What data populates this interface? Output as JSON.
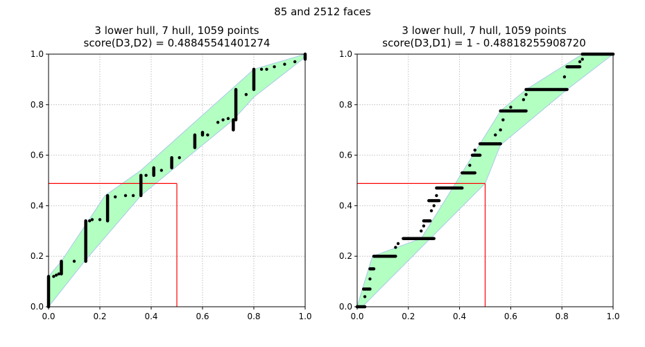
{
  "figure": {
    "suptitle": "85 and 2512 faces"
  },
  "chart_data": [
    {
      "type": "scatter",
      "title": "3 lower hull, 7 hull, 1059 points",
      "subtitle": "score(D3,D2) = 0.48845541401274",
      "xlabel": "",
      "ylabel": "",
      "xlim": [
        0,
        1
      ],
      "ylim": [
        0,
        1
      ],
      "xticks": [
        "0.0",
        "0.2",
        "0.4",
        "0.6",
        "0.8",
        "1.0"
      ],
      "yticks": [
        "0.0",
        "0.2",
        "0.4",
        "0.6",
        "0.8",
        "1.0"
      ],
      "grid": true,
      "hull_color": "#b3ffc2",
      "hull_edge_color": "#a8c8e8",
      "point_color": "#000000",
      "marker_color": "#ff0000",
      "marker": {
        "x": 0.5,
        "y": 0.488
      },
      "hull": [
        [
          0,
          0
        ],
        [
          0,
          0.12
        ],
        [
          0.05,
          0.18
        ],
        [
          0.22,
          0.44
        ],
        [
          0.36,
          0.54
        ],
        [
          0.8,
          0.94
        ],
        [
          1,
          1
        ],
        [
          0.99,
          0.98
        ],
        [
          0.8,
          0.83
        ],
        [
          0.72,
          0.74
        ],
        [
          0.36,
          0.44
        ],
        [
          0.14,
          0.18
        ]
      ],
      "segments": [
        {
          "x": 0.0,
          "y0": 0.0,
          "y1": 0.12
        },
        {
          "x": 0.05,
          "y0": 0.13,
          "y1": 0.18
        },
        {
          "x": 0.145,
          "y0": 0.18,
          "y1": 0.34
        },
        {
          "x": 0.23,
          "y0": 0.34,
          "y1": 0.44
        },
        {
          "x": 0.36,
          "y0": 0.44,
          "y1": 0.52
        },
        {
          "x": 0.41,
          "y0": 0.52,
          "y1": 0.55
        },
        {
          "x": 0.48,
          "y0": 0.55,
          "y1": 0.59
        },
        {
          "x": 0.57,
          "y0": 0.63,
          "y1": 0.68
        },
        {
          "x": 0.6,
          "y0": 0.69,
          "y1": 0.68
        },
        {
          "x": 0.72,
          "y0": 0.7,
          "y1": 0.74
        },
        {
          "x": 0.73,
          "y0": 0.74,
          "y1": 0.86
        },
        {
          "x": 0.8,
          "y0": 0.86,
          "y1": 0.94
        },
        {
          "x": 1.0,
          "y0": 0.98,
          "y1": 1.0
        }
      ],
      "points": [
        [
          0.02,
          0.12
        ],
        [
          0.03,
          0.125
        ],
        [
          0.04,
          0.13
        ],
        [
          0.1,
          0.18
        ],
        [
          0.16,
          0.34
        ],
        [
          0.17,
          0.345
        ],
        [
          0.2,
          0.345
        ],
        [
          0.26,
          0.435
        ],
        [
          0.3,
          0.44
        ],
        [
          0.33,
          0.44
        ],
        [
          0.38,
          0.52
        ],
        [
          0.44,
          0.54
        ],
        [
          0.51,
          0.59
        ],
        [
          0.6,
          0.69
        ],
        [
          0.66,
          0.73
        ],
        [
          0.68,
          0.74
        ],
        [
          0.7,
          0.745
        ],
        [
          0.83,
          0.94
        ],
        [
          0.85,
          0.94
        ],
        [
          0.88,
          0.95
        ],
        [
          0.92,
          0.96
        ],
        [
          0.96,
          0.97
        ],
        [
          0.62,
          0.68
        ],
        [
          0.77,
          0.84
        ]
      ]
    },
    {
      "type": "scatter",
      "title": "3 lower hull, 7 hull, 1059 points",
      "subtitle": "score(D3,D1) = 1 - 0.48818255908720",
      "xlabel": "",
      "ylabel": "",
      "xlim": [
        0,
        1
      ],
      "ylim": [
        0,
        1
      ],
      "xticks": [
        "0.0",
        "0.2",
        "0.4",
        "0.6",
        "0.8",
        "1.0"
      ],
      "yticks": [
        "0.0",
        "0.2",
        "0.4",
        "0.6",
        "0.8",
        "1.0"
      ],
      "grid": true,
      "hull_color": "#b3ffc2",
      "hull_edge_color": "#a8c8e8",
      "point_color": "#000000",
      "marker_color": "#ff0000",
      "marker": {
        "x": 0.5,
        "y": 0.488
      },
      "hull": [
        [
          0,
          0
        ],
        [
          0.02,
          0.07
        ],
        [
          0.06,
          0.2
        ],
        [
          0.25,
          0.27
        ],
        [
          0.56,
          0.775
        ],
        [
          0.66,
          0.86
        ],
        [
          0.88,
          1.0
        ],
        [
          1,
          1
        ],
        [
          0.82,
          0.86
        ],
        [
          0.56,
          0.64
        ],
        [
          0.5,
          0.488
        ],
        [
          0.02,
          0.0
        ]
      ],
      "hsegments": [
        {
          "y": 0.0,
          "x0": 0.0,
          "x1": 0.03
        },
        {
          "y": 0.07,
          "x0": 0.025,
          "x1": 0.05
        },
        {
          "y": 0.15,
          "x0": 0.05,
          "x1": 0.065
        },
        {
          "y": 0.2,
          "x0": 0.065,
          "x1": 0.15
        },
        {
          "y": 0.27,
          "x0": 0.18,
          "x1": 0.3
        },
        {
          "y": 0.34,
          "x0": 0.26,
          "x1": 0.285
        },
        {
          "y": 0.42,
          "x0": 0.28,
          "x1": 0.32
        },
        {
          "y": 0.47,
          "x0": 0.31,
          "x1": 0.41
        },
        {
          "y": 0.53,
          "x0": 0.41,
          "x1": 0.46
        },
        {
          "y": 0.6,
          "x0": 0.45,
          "x1": 0.48
        },
        {
          "y": 0.645,
          "x0": 0.48,
          "x1": 0.56
        },
        {
          "y": 0.775,
          "x0": 0.56,
          "x1": 0.66
        },
        {
          "y": 0.86,
          "x0": 0.66,
          "x1": 0.82
        },
        {
          "y": 0.95,
          "x0": 0.82,
          "x1": 0.87
        },
        {
          "y": 1.0,
          "x0": 0.88,
          "x1": 1.0
        }
      ],
      "points": [
        [
          0.03,
          0.04
        ],
        [
          0.05,
          0.11
        ],
        [
          0.15,
          0.235
        ],
        [
          0.16,
          0.25
        ],
        [
          0.25,
          0.3
        ],
        [
          0.26,
          0.32
        ],
        [
          0.29,
          0.38
        ],
        [
          0.3,
          0.4
        ],
        [
          0.31,
          0.44
        ],
        [
          0.44,
          0.56
        ],
        [
          0.46,
          0.62
        ],
        [
          0.54,
          0.68
        ],
        [
          0.56,
          0.7
        ],
        [
          0.57,
          0.74
        ],
        [
          0.6,
          0.79
        ],
        [
          0.65,
          0.82
        ],
        [
          0.66,
          0.84
        ],
        [
          0.81,
          0.91
        ],
        [
          0.87,
          0.97
        ],
        [
          0.88,
          0.98
        ]
      ]
    }
  ]
}
